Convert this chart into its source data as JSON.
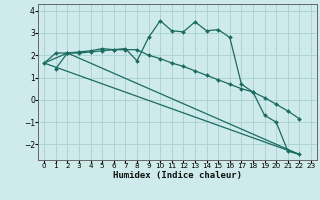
{
  "xlabel": "Humidex (Indice chaleur)",
  "background_color": "#ceeaea",
  "line_color": "#1a6b60",
  "grid_color": "#afd4d4",
  "xlim": [
    -0.5,
    23.5
  ],
  "ylim": [
    -2.7,
    4.3
  ],
  "yticks": [
    -2,
    -1,
    0,
    1,
    2,
    3,
    4
  ],
  "xticks": [
    0,
    1,
    2,
    3,
    4,
    5,
    6,
    7,
    8,
    9,
    10,
    11,
    12,
    13,
    14,
    15,
    16,
    17,
    18,
    19,
    20,
    21,
    22,
    23
  ],
  "curve1_x": [
    0,
    1,
    2,
    3,
    4,
    5,
    6,
    7,
    8,
    9,
    10,
    11,
    12,
    13,
    14,
    15,
    16,
    17,
    18,
    19,
    20,
    21,
    22
  ],
  "curve1_y": [
    1.65,
    2.1,
    2.1,
    2.15,
    2.2,
    2.3,
    2.25,
    2.3,
    1.75,
    2.8,
    3.55,
    3.1,
    3.05,
    3.5,
    3.1,
    3.15,
    2.8,
    0.7,
    0.35,
    -0.7,
    -1.0,
    -2.3,
    -2.45
  ],
  "curve2_x": [
    1,
    2,
    3,
    4,
    5,
    6,
    7,
    8,
    9,
    10,
    11,
    12,
    13,
    14,
    15,
    16,
    17,
    18,
    19,
    20,
    21,
    22
  ],
  "curve2_y": [
    1.4,
    2.1,
    2.1,
    2.15,
    2.2,
    2.25,
    2.25,
    2.25,
    2.0,
    1.85,
    1.65,
    1.5,
    1.3,
    1.1,
    0.9,
    0.7,
    0.5,
    0.35,
    0.1,
    -0.2,
    -0.5,
    -0.85
  ],
  "curve3_x": [
    0,
    22
  ],
  "curve3_y": [
    1.65,
    -2.45
  ],
  "curve4_x": [
    0,
    2,
    22
  ],
  "curve4_y": [
    1.65,
    2.1,
    -2.45
  ]
}
